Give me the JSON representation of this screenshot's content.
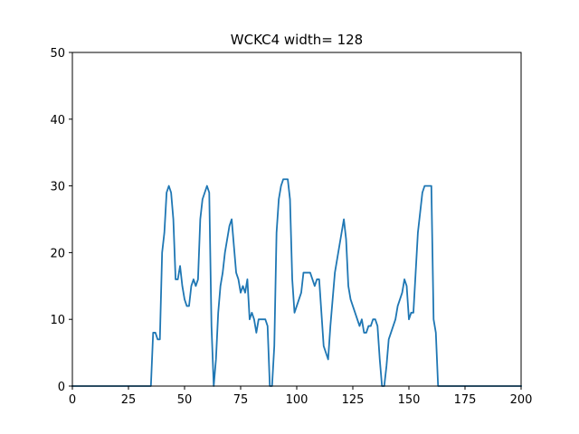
{
  "chart_data": {
    "type": "line",
    "title": "WCKC4 width= 128",
    "xlabel": "",
    "ylabel": "",
    "xlim": [
      0,
      200
    ],
    "ylim": [
      0,
      50
    ],
    "xticks": [
      0,
      25,
      50,
      75,
      100,
      125,
      150,
      175,
      200
    ],
    "yticks": [
      0,
      10,
      20,
      30,
      40,
      50
    ],
    "grid": false,
    "series": [
      {
        "name": "WCKC4",
        "color": "#1f77b4",
        "x": [
          0,
          35,
          36,
          37,
          38,
          39,
          40,
          41,
          42,
          43,
          44,
          45,
          46,
          47,
          48,
          49,
          50,
          51,
          52,
          53,
          54,
          55,
          56,
          57,
          58,
          59,
          60,
          61,
          62,
          63,
          64,
          65,
          66,
          67,
          68,
          69,
          70,
          71,
          72,
          73,
          74,
          75,
          76,
          77,
          78,
          79,
          80,
          81,
          82,
          83,
          84,
          85,
          86,
          87,
          88,
          89,
          90,
          91,
          92,
          93,
          94,
          95,
          96,
          97,
          98,
          99,
          100,
          101,
          102,
          103,
          104,
          105,
          106,
          107,
          108,
          109,
          110,
          111,
          112,
          113,
          114,
          115,
          116,
          117,
          118,
          119,
          120,
          121,
          122,
          123,
          124,
          125,
          126,
          127,
          128,
          129,
          130,
          131,
          132,
          133,
          134,
          135,
          136,
          137,
          138,
          139,
          140,
          141,
          142,
          143,
          144,
          145,
          146,
          147,
          148,
          149,
          150,
          151,
          152,
          153,
          154,
          155,
          156,
          157,
          158,
          159,
          160,
          161,
          162,
          163,
          200
        ],
        "y": [
          0,
          0,
          8,
          8,
          7,
          7,
          20,
          23,
          29,
          30,
          29,
          25,
          16,
          16,
          18,
          15,
          13,
          12,
          12,
          15,
          16,
          15,
          16,
          25,
          28,
          29,
          30,
          29,
          9,
          0,
          4,
          11,
          15,
          17,
          20,
          22,
          24,
          25,
          21,
          17,
          16,
          14,
          15,
          14,
          16,
          10,
          11,
          10,
          8,
          10,
          10,
          10,
          10,
          9,
          0,
          0,
          6,
          23,
          28,
          30,
          31,
          31,
          31,
          28,
          16,
          11,
          12,
          13,
          14,
          17,
          17,
          17,
          17,
          16,
          15,
          16,
          16,
          11,
          6,
          5,
          4,
          9,
          13,
          17,
          19,
          21,
          23,
          25,
          22,
          15,
          13,
          12,
          11,
          10,
          9,
          10,
          8,
          8,
          9,
          9,
          10,
          10,
          9,
          4,
          0,
          0,
          3,
          7,
          8,
          9,
          10,
          12,
          13,
          14,
          16,
          15,
          10,
          11,
          11,
          17,
          23,
          26,
          29,
          30,
          30,
          30,
          30,
          10,
          8,
          0,
          0
        ]
      }
    ]
  }
}
